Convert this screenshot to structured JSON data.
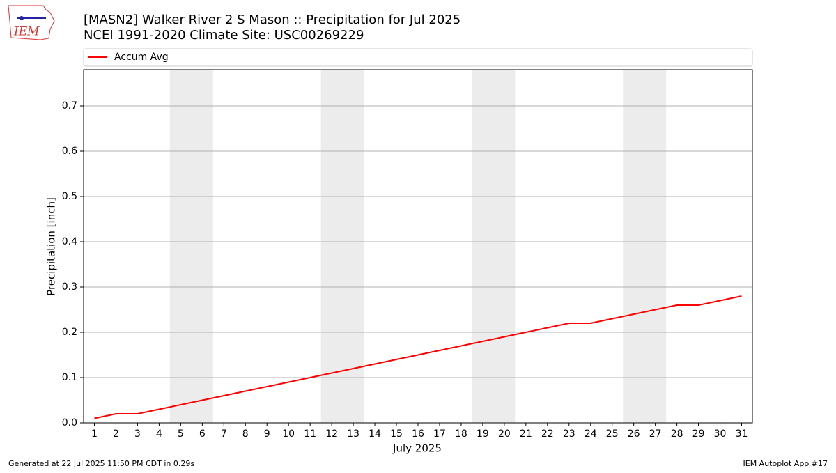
{
  "chart_data": {
    "type": "line",
    "title": "[MASN2] Walker River 2 S Mason :: Precipitation for Jul 2025",
    "subtitle": "NCEI 1991-2020 Climate Site: USC00269229",
    "x_label": "July 2025",
    "y_label": "Precipitation [inch]",
    "x": [
      1,
      2,
      3,
      4,
      5,
      6,
      7,
      8,
      9,
      10,
      11,
      12,
      13,
      14,
      15,
      16,
      17,
      18,
      19,
      20,
      21,
      22,
      23,
      24,
      25,
      26,
      27,
      28,
      29,
      30,
      31
    ],
    "series": [
      {
        "name": "Accum Avg",
        "color": "#ff0000",
        "values": [
          0.01,
          0.02,
          0.02,
          0.03,
          0.04,
          0.05,
          0.06,
          0.07,
          0.08,
          0.09,
          0.1,
          0.11,
          0.12,
          0.13,
          0.14,
          0.15,
          0.16,
          0.17,
          0.18,
          0.19,
          0.2,
          0.21,
          0.22,
          0.22,
          0.23,
          0.24,
          0.25,
          0.26,
          0.26,
          0.27,
          0.28
        ]
      }
    ],
    "shaded_spans": [
      [
        4.5,
        6.5
      ],
      [
        11.5,
        13.5
      ],
      [
        18.5,
        20.5
      ],
      [
        25.5,
        27.5
      ]
    ],
    "shade_color": "#ececec",
    "xlim": [
      0.5,
      31.5
    ],
    "ylim": [
      0,
      0.78
    ],
    "xticks": [
      1,
      2,
      3,
      4,
      5,
      6,
      7,
      8,
      9,
      10,
      11,
      12,
      13,
      14,
      15,
      16,
      17,
      18,
      19,
      20,
      21,
      22,
      23,
      24,
      25,
      26,
      27,
      28,
      29,
      30,
      31
    ],
    "yticks": [
      {
        "value": 0,
        "label": "0.0"
      },
      0.1,
      0.2,
      0.3,
      0.4,
      0.5,
      0.6,
      0.7
    ],
    "grid": "y",
    "legend": "top"
  },
  "logo": "IEM",
  "footer": {
    "left": "Generated at 22 Jul 2025 11:50 PM CDT in 0.29s",
    "right": "IEM Autoplot App #17"
  }
}
